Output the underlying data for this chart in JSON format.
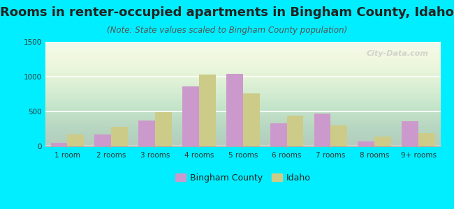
{
  "title": "Rooms in renter-occupied apartments in Bingham County, Idaho",
  "subtitle": "(Note: State values scaled to Bingham County population)",
  "categories": [
    "1 room",
    "2 rooms",
    "3 rooms",
    "4 rooms",
    "5 rooms",
    "6 rooms",
    "7 rooms",
    "8 rooms",
    "9+ rooms"
  ],
  "bingham_values": [
    55,
    175,
    370,
    860,
    1040,
    335,
    470,
    75,
    360
  ],
  "idaho_values": [
    170,
    280,
    490,
    1030,
    760,
    440,
    305,
    145,
    195
  ],
  "bingham_color": "#cc99cc",
  "idaho_color": "#cccc88",
  "background_outer": "#00eeff",
  "ylim": [
    0,
    1500
  ],
  "yticks": [
    0,
    500,
    1000,
    1500
  ],
  "bar_width": 0.38,
  "title_fontsize": 13,
  "subtitle_fontsize": 8.5,
  "tick_fontsize": 7.5,
  "legend_fontsize": 9,
  "watermark": "City-Data.com"
}
